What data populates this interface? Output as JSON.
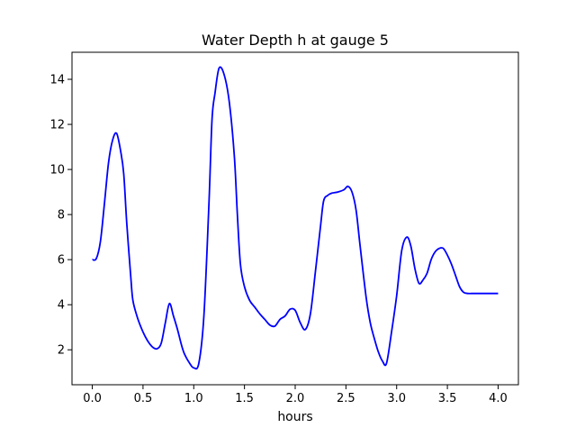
{
  "chart_data": {
    "type": "line",
    "title": "Water Depth h at gauge 5",
    "xlabel": "hours",
    "ylabel": "",
    "xlim": [
      -0.2,
      4.2
    ],
    "ylim": [
      0.45,
      15.2
    ],
    "xticks": [
      0.0,
      0.5,
      1.0,
      1.5,
      2.0,
      2.5,
      3.0,
      3.5,
      4.0
    ],
    "xtick_labels": [
      "0.0",
      "0.5",
      "1.0",
      "1.5",
      "2.0",
      "2.5",
      "3.0",
      "3.5",
      "4.0"
    ],
    "yticks": [
      2,
      4,
      6,
      8,
      10,
      12,
      14
    ],
    "ytick_labels": [
      "2",
      "4",
      "6",
      "8",
      "10",
      "12",
      "14"
    ],
    "grid": false,
    "legend": "none",
    "series": [
      {
        "color": "#0000ff",
        "x": [
          0.0,
          0.04,
          0.08,
          0.12,
          0.16,
          0.2,
          0.24,
          0.28,
          0.31,
          0.34,
          0.38,
          0.4,
          0.44,
          0.48,
          0.52,
          0.56,
          0.6,
          0.64,
          0.68,
          0.72,
          0.76,
          0.8,
          0.84,
          0.88,
          0.91,
          0.96,
          1.0,
          1.05,
          1.1,
          1.15,
          1.18,
          1.21,
          1.25,
          1.3,
          1.35,
          1.4,
          1.43,
          1.46,
          1.5,
          1.55,
          1.6,
          1.65,
          1.7,
          1.75,
          1.8,
          1.85,
          1.9,
          1.95,
          2.0,
          2.05,
          2.1,
          2.15,
          2.2,
          2.25,
          2.28,
          2.32,
          2.36,
          2.42,
          2.48,
          2.52,
          2.56,
          2.6,
          2.64,
          2.7,
          2.74,
          2.78,
          2.82,
          2.86,
          2.9,
          2.95,
          3.0,
          3.05,
          3.1,
          3.14,
          3.18,
          3.22,
          3.26,
          3.3,
          3.34,
          3.38,
          3.42,
          3.46,
          3.5,
          3.54,
          3.58,
          3.62,
          3.66,
          3.7,
          3.74,
          3.78,
          3.82,
          3.86,
          3.9,
          3.94,
          3.97,
          4.0
        ],
        "values": [
          6.0,
          6.05,
          6.8,
          8.5,
          10.3,
          11.3,
          11.6,
          10.8,
          9.8,
          7.6,
          5.2,
          4.2,
          3.5,
          3.0,
          2.6,
          2.3,
          2.1,
          2.05,
          2.3,
          3.2,
          4.05,
          3.5,
          2.9,
          2.2,
          1.8,
          1.4,
          1.2,
          1.4,
          3.5,
          8.5,
          12.2,
          13.4,
          14.5,
          14.2,
          13.0,
          10.6,
          8.0,
          5.8,
          4.8,
          4.2,
          3.9,
          3.6,
          3.35,
          3.1,
          3.05,
          3.35,
          3.5,
          3.8,
          3.75,
          3.2,
          2.9,
          3.6,
          5.5,
          7.5,
          8.6,
          8.85,
          8.95,
          9.0,
          9.1,
          9.25,
          9.0,
          8.2,
          6.6,
          4.3,
          3.2,
          2.5,
          1.9,
          1.5,
          1.4,
          2.8,
          4.4,
          6.4,
          7.0,
          6.6,
          5.6,
          4.95,
          5.1,
          5.4,
          6.0,
          6.35,
          6.5,
          6.5,
          6.2,
          5.8,
          5.3,
          4.8,
          4.55,
          4.5,
          4.5,
          4.5,
          4.5,
          4.5,
          4.5,
          4.5,
          4.5,
          4.5
        ]
      }
    ]
  }
}
